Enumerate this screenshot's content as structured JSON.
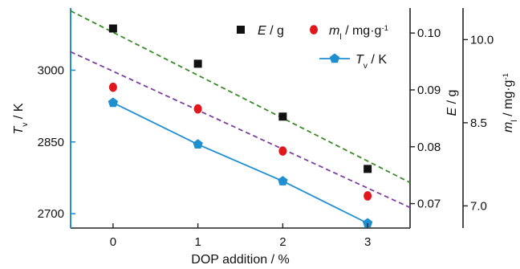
{
  "chart_data": {
    "type": "scatter",
    "x_axis": {
      "label": "DOP addition / %",
      "ticks": [
        "0",
        "1",
        "2",
        "3"
      ],
      "range": [
        -0.5,
        3.5
      ]
    },
    "left_axis": {
      "label_symbol": "T",
      "label_sub": "v",
      "label_unit": " / K",
      "ticks": [
        "2700",
        "2850",
        "3000"
      ],
      "range": [
        2670,
        3130
      ],
      "color": "#1f8fd0"
    },
    "mid_axis": {
      "label_symbol": "E",
      "label_unit": " / g",
      "ticks": [
        "0.07",
        "0.08",
        "0.09",
        "0.10"
      ],
      "range": [
        0.0657,
        0.1044
      ]
    },
    "right_axis": {
      "label_symbol": "m",
      "label_sub": "l",
      "label_unit": " / mg·g",
      "label_sup": "-1",
      "ticks": [
        "7.0",
        "8.5",
        "10.0"
      ],
      "range": [
        6.6,
        10.57
      ]
    },
    "series": [
      {
        "name_symbol": "E",
        "name_unit": " / g",
        "axis": "mid",
        "marker": "square",
        "color": "#111111",
        "x": [
          0,
          1,
          2,
          3
        ],
        "y": [
          0.1008,
          0.0946,
          0.0853,
          0.0761
        ],
        "fit_line": {
          "style": "dashed",
          "color": "#3a8a2a",
          "y_at_x": [
            [
              -0.5,
              0.1039
            ],
            [
              3.5,
              0.0737
            ]
          ]
        }
      },
      {
        "name_symbol": "m",
        "name_sub": "l",
        "name_unit": " / mg·g",
        "name_sup": "-1",
        "axis": "right",
        "marker": "circle",
        "color": "#e0171d",
        "x": [
          0,
          1,
          2,
          3
        ],
        "y": [
          9.14,
          8.75,
          7.99,
          7.18
        ],
        "fit_line": {
          "style": "dashed",
          "color": "#7b3fa0",
          "y_at_x": [
            [
              -0.5,
              9.78
            ],
            [
              3.5,
              6.97
            ]
          ]
        }
      },
      {
        "name_symbol": "T",
        "name_sub": "v",
        "name_unit": " / K",
        "axis": "left",
        "marker": "pentagon",
        "color": "#1f8fd0",
        "line": "solid",
        "x": [
          0,
          1,
          2,
          3
        ],
        "y": [
          2932,
          2845,
          2768,
          2680
        ]
      }
    ]
  }
}
